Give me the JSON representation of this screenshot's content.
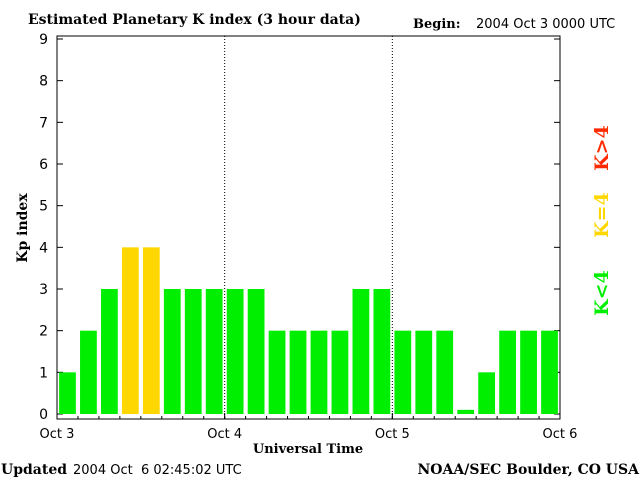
{
  "chart_data": {
    "type": "bar",
    "title": "Estimated Planetary K index (3 hour data)",
    "begin_label": "Begin:",
    "begin_value": "2004 Oct 3 0000 UTC",
    "xlabel": "Universal Time",
    "ylabel": "Kp index",
    "ylim": [
      0,
      9
    ],
    "yticks": [
      "0",
      "1",
      "2",
      "3",
      "4",
      "5",
      "6",
      "7",
      "8",
      "9"
    ],
    "xlim_hours": [
      0,
      72
    ],
    "xticks": [
      {
        "label": "Oct 3",
        "hour": 0
      },
      {
        "label": "Oct 4",
        "hour": 24
      },
      {
        "label": "Oct 5",
        "hour": 48
      },
      {
        "label": "Oct 6",
        "hour": 72
      }
    ],
    "day_dividers_hours": [
      24,
      48
    ],
    "bar_interval_hours": 3,
    "values": [
      1,
      2,
      3,
      4,
      4,
      3,
      3,
      3,
      3,
      3,
      2,
      2,
      2,
      2,
      3,
      3,
      2,
      2,
      2,
      0.1,
      1,
      2,
      2,
      2
    ],
    "legend": [
      {
        "label": "K<4",
        "color": "#00ee00"
      },
      {
        "label": "K=4",
        "color": "#ffd700"
      },
      {
        "label": "K>4",
        "color": "#ff2a00"
      }
    ],
    "grid": false,
    "legend_placement": "right",
    "updated_label": "Updated",
    "updated_value": "2004 Oct  6 02:45:02 UTC",
    "credit": "NOAA/SEC Boulder, CO USA"
  }
}
